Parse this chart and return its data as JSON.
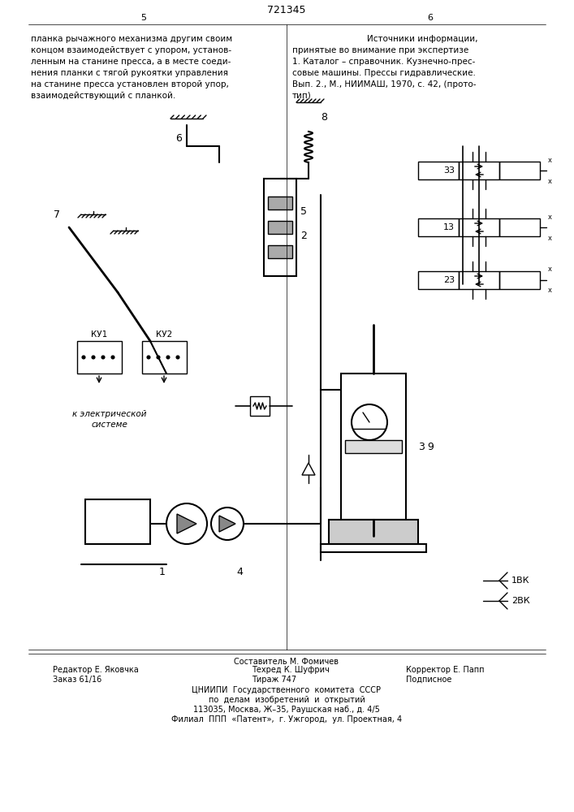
{
  "page_number": "721345",
  "page_left": "5",
  "page_right": "6",
  "left_text": [
    "планка рычажного механизма другим своим",
    "концом взаимодействует с упором, установ-",
    "ленным на станине пресса, а в месте соеди-",
    "нения планки с тягой рукоятки управления",
    "на станине пресса установлен второй упор,",
    "взаимодействующий с планкой."
  ],
  "right_text_title": "Источники информации,",
  "right_text": [
    "принятые во внимание при экспертизе",
    "1. Каталог – справочник. Кузнечно-прес-",
    "совые машины. Прессы гидравлические.",
    "Вып. 2., М., НИИМАШ, 1970, с. 42, (прото-",
    "тип)"
  ],
  "footer_line1_left": "Редактор Е. Яковчка",
  "footer_line1_center": "Техред К. Шуфрич",
  "footer_line1_right": "Корректор Е. Папп",
  "footer_line2_left": "Заказ 61/16",
  "footer_line2_center": "Тираж 747",
  "footer_line2_right": "Подписное",
  "footer_center1": "Составитель М. Фомичев",
  "footer_org1": "ЦНИИПИ  Государственного  комитета  СССР",
  "footer_org2": "по  делам  изобретений  и  открытий",
  "footer_org3": "113035, Москва, Ж–35, Раушская наб., д. 4/5",
  "footer_org4": "Филиал  ППП  «Патент»,  г. Ужгород,  ул. Проектная, 4",
  "bg_color": "#ffffff",
  "line_color": "#000000",
  "text_color": "#000000"
}
